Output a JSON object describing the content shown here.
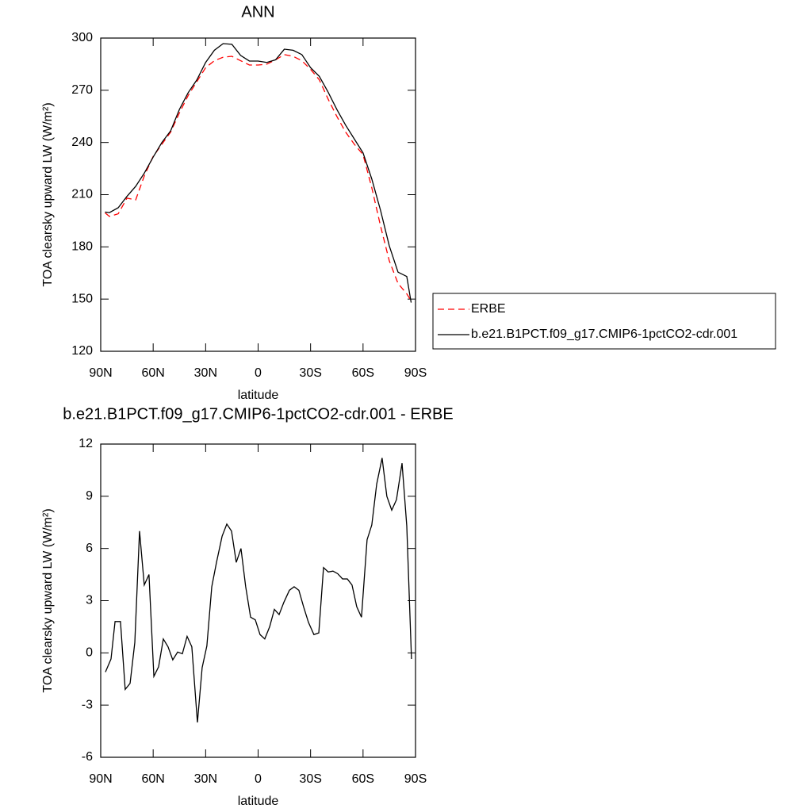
{
  "chart_data": [
    {
      "type": "line",
      "title": "ANN",
      "xlabel": "latitude",
      "ylabel": "TOA clearsky upward LW (W/m²)",
      "x": [
        87.5,
        85,
        80,
        75,
        70,
        65,
        60,
        55,
        50,
        45,
        40,
        35,
        30,
        25,
        20,
        15,
        10,
        5,
        0,
        -5,
        -10,
        -15,
        -20,
        -25,
        -30,
        -35,
        -40,
        -45,
        -50,
        -55,
        -60,
        -65,
        -70,
        -75,
        -80,
        -85,
        -87.5
      ],
      "series": [
        {
          "name": "ERBE",
          "color": "#ff0000",
          "line_style": "dashed",
          "values": [
            199.5,
            197.5,
            199,
            208,
            207,
            221,
            232,
            239,
            246,
            257,
            267,
            275,
            283,
            287,
            289,
            289.5,
            287,
            284.5,
            284.5,
            285,
            287.5,
            290.5,
            289.5,
            287,
            282,
            276,
            265,
            255,
            246,
            239,
            233,
            214,
            192,
            172,
            159,
            153,
            149
          ]
        },
        {
          "name": "b.e21.B1PCT.f09_g17.CMIP6-1pctCO2-cdr.001",
          "color": "#000000",
          "line_style": "solid",
          "values": [
            200,
            199.7,
            202.5,
            209,
            214.8,
            222.5,
            231.6,
            240,
            246.7,
            259,
            268.6,
            276,
            286,
            293,
            296.8,
            296.4,
            290,
            286.8,
            286.8,
            286,
            287.5,
            293.6,
            293,
            290.5,
            283,
            278,
            269,
            259,
            250,
            242,
            234,
            219,
            201,
            180.6,
            165.5,
            163,
            148
          ]
        }
      ],
      "xlim": [
        90,
        -90
      ],
      "xticks": [
        {
          "value": 90,
          "label": "90N"
        },
        {
          "value": 60,
          "label": "60N"
        },
        {
          "value": 30,
          "label": "30N"
        },
        0,
        {
          "value": -30,
          "label": "30S"
        },
        {
          "value": -60,
          "label": "60S"
        },
        {
          "value": -90,
          "label": "90S"
        }
      ],
      "ylim": [
        120,
        300
      ],
      "yticks": [
        120,
        150,
        180,
        210,
        240,
        270,
        300
      ],
      "legend": "right"
    },
    {
      "type": "line",
      "title": "b.e21.B1PCT.f09_g17.CMIP6-1pctCO2-cdr.001 - ERBE",
      "xlabel": "latitude",
      "ylabel": "TOA clearsky upward LW (W/m²)",
      "x": [
        87.3,
        84.1,
        81.8,
        78.7,
        76.0,
        73.2,
        70.5,
        67.8,
        65.1,
        62.4,
        59.6,
        56.9,
        54.2,
        51.5,
        48.8,
        46.0,
        43.3,
        40.6,
        37.9,
        34.7,
        32.0,
        29.3,
        26.5,
        23.8,
        20.6,
        17.9,
        15.2,
        12.5,
        9.8,
        7.1,
        4.3,
        1.6,
        -1.1,
        -3.8,
        -6.6,
        -9.3,
        -12.0,
        -14.7,
        -17.9,
        -20.6,
        -23.3,
        -26.0,
        -28.8,
        -31.9,
        -34.7,
        -37.4,
        -40.1,
        -42.8,
        -45.5,
        -48.3,
        -51.0,
        -53.7,
        -56.4,
        -59.1,
        -62.3,
        -65.0,
        -67.8,
        -70.9,
        -73.6,
        -76.4,
        -79.1,
        -82.3,
        -85.0,
        -87.7
      ],
      "values": [
        -1.1,
        -0.35,
        1.8,
        1.8,
        -2.1,
        -1.75,
        0.6,
        7.0,
        3.9,
        4.5,
        -1.35,
        -0.8,
        0.8,
        0.35,
        -0.4,
        0.05,
        -0.05,
        0.95,
        0.35,
        -4.0,
        -0.85,
        0.4,
        3.8,
        5.2,
        6.7,
        7.4,
        7.0,
        5.2,
        6.0,
        3.8,
        2.05,
        1.9,
        1.05,
        0.8,
        1.5,
        2.5,
        2.2,
        2.9,
        3.6,
        3.8,
        3.6,
        2.65,
        1.75,
        1.05,
        1.15,
        4.9,
        4.65,
        4.7,
        4.55,
        4.25,
        4.25,
        3.9,
        2.65,
        2.05,
        6.5,
        7.35,
        9.7,
        11.2,
        9.0,
        8.2,
        8.8,
        10.9,
        7.3,
        -0.35
      ],
      "color": "#000000",
      "xlim": [
        90,
        -90
      ],
      "xticks": [
        {
          "value": 90,
          "label": "90N"
        },
        {
          "value": 60,
          "label": "60N"
        },
        {
          "value": 30,
          "label": "30N"
        },
        0,
        {
          "value": -30,
          "label": "30S"
        },
        {
          "value": -60,
          "label": "60S"
        },
        {
          "value": -90,
          "label": "90S"
        }
      ],
      "ylim": [
        -6,
        12
      ],
      "yticks": [
        -6,
        -3,
        0,
        3,
        6,
        9,
        12
      ]
    }
  ]
}
